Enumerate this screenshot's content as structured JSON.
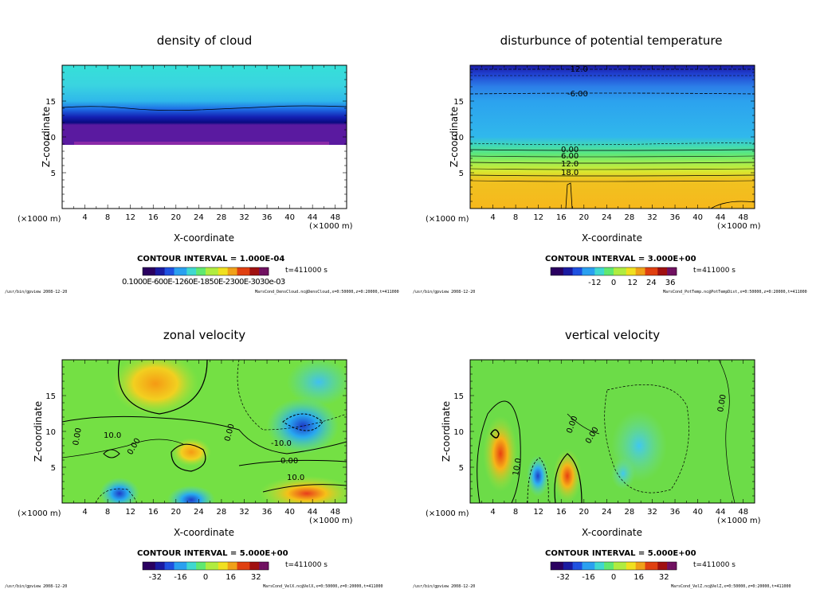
{
  "chart_data": [
    {
      "type": "heatmap",
      "title": "density of cloud",
      "xlabel": "X-coordinate",
      "ylabel": "Z-coordinate",
      "x_unit": "(×1000 m)",
      "y_unit": "(×1000 m)",
      "xlim": [
        0,
        50
      ],
      "ylim": [
        0,
        20
      ],
      "xticks": [
        "4",
        "8",
        "12",
        "16",
        "20",
        "24",
        "28",
        "32",
        "36",
        "40",
        "44",
        "48"
      ],
      "yticks": [
        "5",
        "10",
        "15"
      ],
      "contour_interval": "CONTOUR INTERVAL = 1.000E-04",
      "time": "t=411000 s",
      "colorbar_labels": [
        "0.10000E-03",
        "0.10000E-03",
        "0.12000E-03",
        "0.18000E-03",
        "0.23000E-03",
        "0.30000e-03"
      ],
      "colorbar_text": "0.1000E-600E-1260E-1850E-2300E-3030e-03",
      "footer_left": "/usr/bin/gpview   2008-12-20",
      "footer_right": "MarsCond_DensCloud.nc@DensCloud,x=0:50000,z=0:20000,t=411000",
      "contour_labels": []
    },
    {
      "type": "heatmap",
      "title": "disturbunce of potential temperature",
      "xlabel": "X-coordinate",
      "ylabel": "Z-coordinate",
      "x_unit": "(×1000 m)",
      "y_unit": "(×1000 m)",
      "xlim": [
        0,
        50
      ],
      "ylim": [
        0,
        20
      ],
      "xticks": [
        "4",
        "8",
        "12",
        "16",
        "20",
        "24",
        "28",
        "32",
        "36",
        "40",
        "44",
        "48"
      ],
      "yticks": [
        "5",
        "10",
        "15"
      ],
      "contour_interval": "CONTOUR INTERVAL = 3.000E+00",
      "time": "t=411000 s",
      "colorbar_labels": [
        "-12",
        "0",
        "12",
        "24",
        "36"
      ],
      "footer_left": "/usr/bin/gpview   2008-12-20",
      "footer_right": "MarsCond_PotTemp.nc@PotTempDist,x=0:50000,z=0:20000,t=411000",
      "contour_labels": [
        "-12.0",
        "-6.00",
        "0.00",
        "6.00",
        "12.0",
        "18.0"
      ]
    },
    {
      "type": "heatmap",
      "title": "zonal velocity",
      "xlabel": "X-coordinate",
      "ylabel": "Z-coordinate",
      "x_unit": "(×1000 m)",
      "y_unit": "(×1000 m)",
      "xlim": [
        0,
        50
      ],
      "ylim": [
        0,
        20
      ],
      "xticks": [
        "4",
        "8",
        "12",
        "16",
        "20",
        "24",
        "28",
        "32",
        "36",
        "40",
        "44",
        "48"
      ],
      "yticks": [
        "5",
        "10",
        "15"
      ],
      "contour_interval": "CONTOUR INTERVAL = 5.000E+00",
      "time": "t=411000 s",
      "colorbar_labels": [
        "-32",
        "-16",
        "0",
        "16",
        "32"
      ],
      "footer_left": "/usr/bin/gpview   2008-12-20",
      "footer_right": "MarsCond_VelX.nc@VelX,x=0:50000,z=0:20000,t=411000",
      "contour_labels": [
        "0.00",
        "10.0",
        "0.00",
        "0.00",
        "-10.0",
        "0.00",
        "10.0"
      ]
    },
    {
      "type": "heatmap",
      "title": "vertical velocity",
      "xlabel": "X-coordinate",
      "ylabel": "Z-coordinate",
      "x_unit": "(×1000 m)",
      "y_unit": "(×1000 m)",
      "xlim": [
        0,
        50
      ],
      "ylim": [
        0,
        20
      ],
      "xticks": [
        "4",
        "8",
        "12",
        "16",
        "20",
        "24",
        "28",
        "32",
        "36",
        "40",
        "44",
        "48"
      ],
      "yticks": [
        "5",
        "10",
        "15"
      ],
      "contour_interval": "CONTOUR INTERVAL = 5.000E+00",
      "time": "t=411000 s",
      "colorbar_labels": [
        "-32",
        "-16",
        "0",
        "16",
        "32"
      ],
      "footer_left": "/usr/bin/gpview   2008-12-20",
      "footer_right": "MarsCond_VelZ.nc@VelZ,x=0:50000,z=0:20000,t=411000",
      "contour_labels": [
        "0.00",
        "0.00",
        "0.00",
        "10.0"
      ]
    }
  ]
}
